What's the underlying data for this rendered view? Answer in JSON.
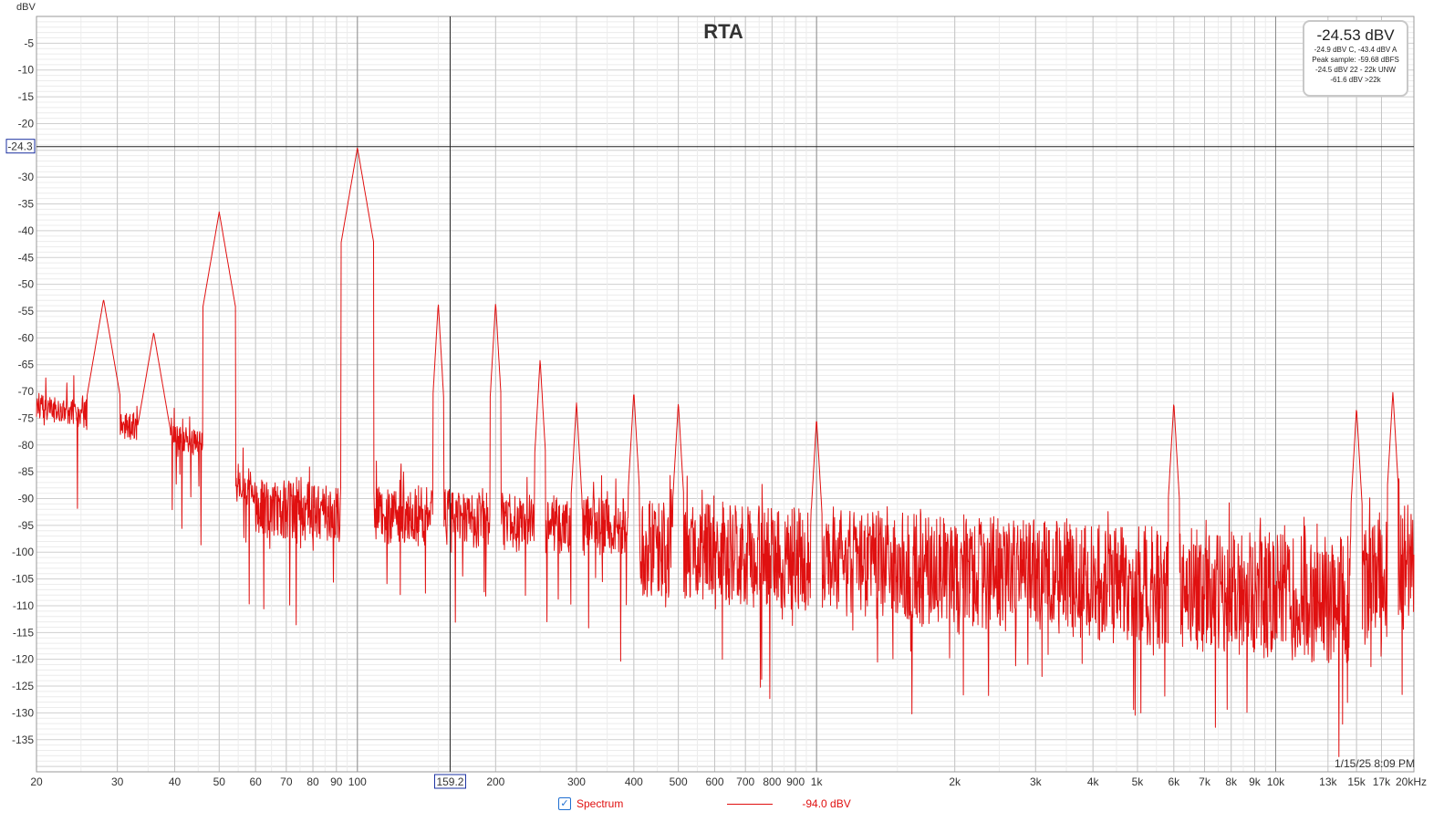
{
  "chart_data": {
    "type": "line",
    "title": "RTA",
    "ylabel": "dBV",
    "xlabel": "",
    "x_scale": "log",
    "xlim": [
      20,
      20000
    ],
    "ylim": [
      -141,
      0
    ],
    "x_ticks": [
      {
        "v": 20,
        "label": "20",
        "major": false
      },
      {
        "v": 30,
        "label": "30",
        "major": false
      },
      {
        "v": 40,
        "label": "40",
        "major": false
      },
      {
        "v": 50,
        "label": "50",
        "major": false
      },
      {
        "v": 60,
        "label": "60",
        "major": false
      },
      {
        "v": 70,
        "label": "70",
        "major": false
      },
      {
        "v": 80,
        "label": "80",
        "major": false
      },
      {
        "v": 90,
        "label": "90",
        "major": false
      },
      {
        "v": 100,
        "label": "100",
        "major": true
      },
      {
        "v": 200,
        "label": "200",
        "major": false
      },
      {
        "v": 300,
        "label": "300",
        "major": false
      },
      {
        "v": 400,
        "label": "400",
        "major": false
      },
      {
        "v": 500,
        "label": "500",
        "major": false
      },
      {
        "v": 600,
        "label": "600",
        "major": false
      },
      {
        "v": 700,
        "label": "700",
        "major": false
      },
      {
        "v": 800,
        "label": "800",
        "major": false
      },
      {
        "v": 900,
        "label": "900",
        "major": false
      },
      {
        "v": 1000,
        "label": "1k",
        "major": true
      },
      {
        "v": 2000,
        "label": "2k",
        "major": false
      },
      {
        "v": 3000,
        "label": "3k",
        "major": false
      },
      {
        "v": 4000,
        "label": "4k",
        "major": false
      },
      {
        "v": 5000,
        "label": "5k",
        "major": false
      },
      {
        "v": 6000,
        "label": "6k",
        "major": false
      },
      {
        "v": 7000,
        "label": "7k",
        "major": false
      },
      {
        "v": 8000,
        "label": "8k",
        "major": false
      },
      {
        "v": 9000,
        "label": "9k",
        "major": false
      },
      {
        "v": 10000,
        "label": "10k",
        "major": true
      },
      {
        "v": 13000,
        "label": "13k",
        "major": false
      },
      {
        "v": 15000,
        "label": "15k",
        "major": false
      },
      {
        "v": 17000,
        "label": "17k",
        "major": false
      },
      {
        "v": 20000,
        "label": "20kHz",
        "major": false
      }
    ],
    "y_ticks": [
      -5,
      -10,
      -15,
      -20,
      -30,
      -35,
      -40,
      -45,
      -50,
      -55,
      -60,
      -65,
      -70,
      -75,
      -80,
      -85,
      -90,
      -95,
      -100,
      -105,
      -110,
      -115,
      -120,
      -125,
      -130,
      -135
    ],
    "cursor": {
      "x": 159.2,
      "x_label": "159.2",
      "y": -24.3,
      "y_label": "-24.3"
    },
    "grid": true,
    "legend_position": "bottom-center",
    "series": [
      {
        "name": "Spectrum",
        "color": "#e01010",
        "legend_value": "-94.0 dBV",
        "peaks": [
          {
            "f": 28,
            "db": -52.8
          },
          {
            "f": 36,
            "db": -59
          },
          {
            "f": 50,
            "db": -36.5
          },
          {
            "f": 100,
            "db": -24.5
          },
          {
            "f": 150,
            "db": -53.5
          },
          {
            "f": 200,
            "db": -53.3
          },
          {
            "f": 250,
            "db": -64
          },
          {
            "f": 300,
            "db": -72
          },
          {
            "f": 400,
            "db": -70
          },
          {
            "f": 500,
            "db": -72
          },
          {
            "f": 1000,
            "db": -75
          },
          {
            "f": 6000,
            "db": -72
          },
          {
            "f": 15000,
            "db": -73
          },
          {
            "f": 18000,
            "db": -70
          }
        ]
      }
    ]
  },
  "stats": {
    "main": "-24.53 dBV",
    "lines": [
      "-24.9 dBV C, -43.4 dBV A",
      "Peak sample: -59.68 dBFS",
      "-24.5 dBV 22 - 22k UNW",
      "-61.6 dBV >22k"
    ]
  },
  "timestamp": "1/15/25 8:09 PM"
}
